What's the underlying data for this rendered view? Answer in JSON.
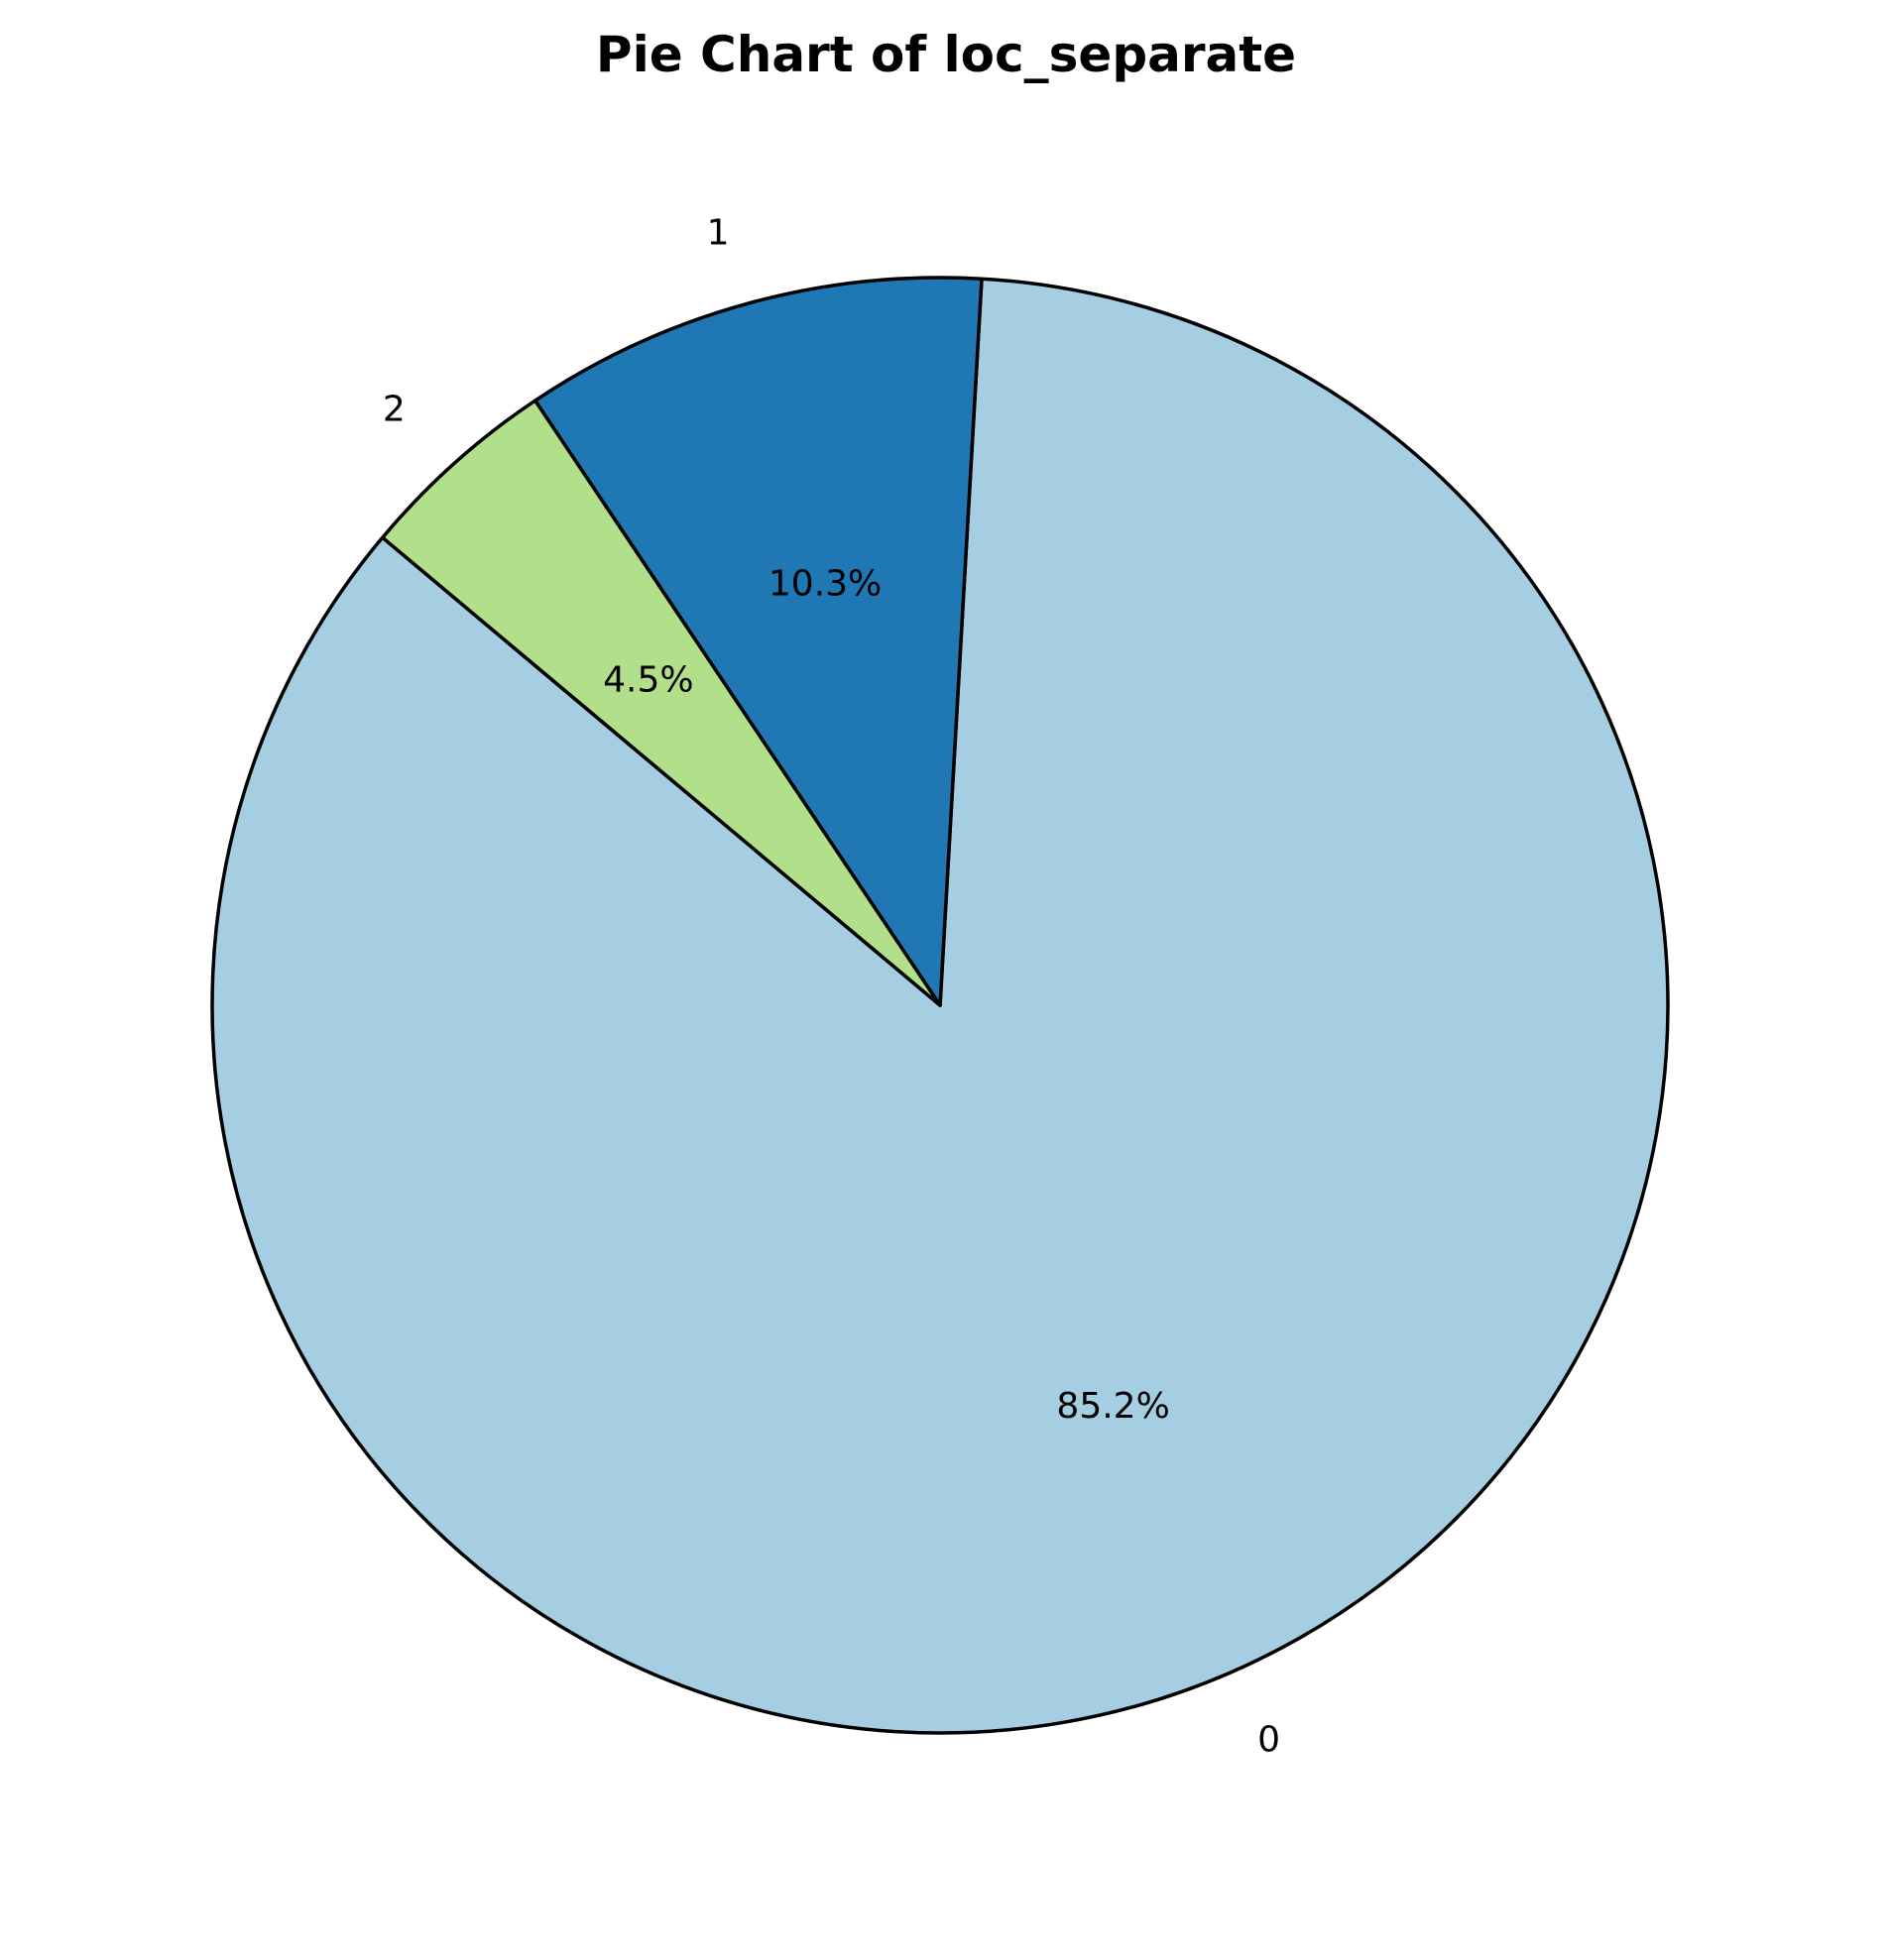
{
  "chart_data": {
    "type": "pie",
    "title": "Pie Chart of loc_separate",
    "start_angle_deg": 140,
    "direction": "counterclockwise",
    "slices": [
      {
        "label": "0",
        "value": 85.2,
        "pct_label": "85.2%",
        "color": "#a6cee3"
      },
      {
        "label": "1",
        "value": 10.3,
        "pct_label": "10.3%",
        "color": "#1f78b4"
      },
      {
        "label": "2",
        "value": 4.5,
        "pct_label": "4.5%",
        "color": "#b2df8a"
      }
    ],
    "edge_color": "#000000",
    "legend": "none"
  }
}
